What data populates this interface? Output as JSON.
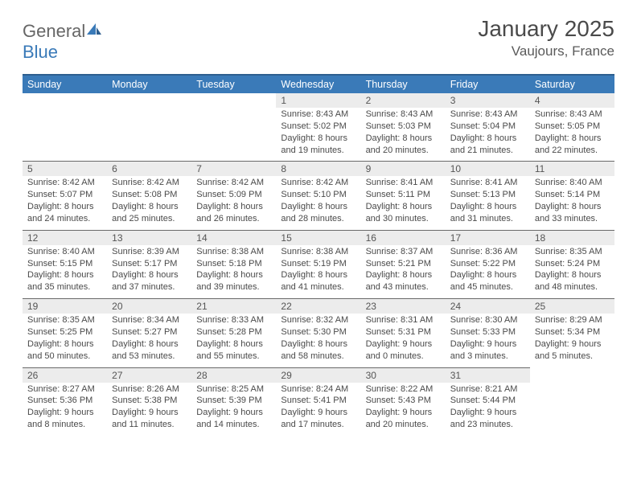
{
  "brand": {
    "part1": "General",
    "part2": "Blue"
  },
  "title": "January 2025",
  "location": "Vaujours, France",
  "colors": {
    "header_bg": "#3a7ab8",
    "header_border_top": "#2e5f8f",
    "daynum_bg": "#ececec",
    "row_divider": "#6a6a6a",
    "page_bg": "#ffffff",
    "text": "#4a4a4a",
    "logo_gray": "#666666",
    "logo_blue": "#3a7ab8"
  },
  "typography": {
    "title_fontsize": 28,
    "location_fontsize": 17,
    "weekday_fontsize": 12.5,
    "daynum_fontsize": 12,
    "cell_fontsize": 11
  },
  "weekdays": [
    "Sunday",
    "Monday",
    "Tuesday",
    "Wednesday",
    "Thursday",
    "Friday",
    "Saturday"
  ],
  "weeks": [
    [
      null,
      null,
      null,
      {
        "n": "1",
        "sr": "8:43 AM",
        "ss": "5:02 PM",
        "dl1": "8 hours",
        "dl2": "19 minutes"
      },
      {
        "n": "2",
        "sr": "8:43 AM",
        "ss": "5:03 PM",
        "dl1": "8 hours",
        "dl2": "20 minutes"
      },
      {
        "n": "3",
        "sr": "8:43 AM",
        "ss": "5:04 PM",
        "dl1": "8 hours",
        "dl2": "21 minutes"
      },
      {
        "n": "4",
        "sr": "8:43 AM",
        "ss": "5:05 PM",
        "dl1": "8 hours",
        "dl2": "22 minutes"
      }
    ],
    [
      {
        "n": "5",
        "sr": "8:42 AM",
        "ss": "5:07 PM",
        "dl1": "8 hours",
        "dl2": "24 minutes"
      },
      {
        "n": "6",
        "sr": "8:42 AM",
        "ss": "5:08 PM",
        "dl1": "8 hours",
        "dl2": "25 minutes"
      },
      {
        "n": "7",
        "sr": "8:42 AM",
        "ss": "5:09 PM",
        "dl1": "8 hours",
        "dl2": "26 minutes"
      },
      {
        "n": "8",
        "sr": "8:42 AM",
        "ss": "5:10 PM",
        "dl1": "8 hours",
        "dl2": "28 minutes"
      },
      {
        "n": "9",
        "sr": "8:41 AM",
        "ss": "5:11 PM",
        "dl1": "8 hours",
        "dl2": "30 minutes"
      },
      {
        "n": "10",
        "sr": "8:41 AM",
        "ss": "5:13 PM",
        "dl1": "8 hours",
        "dl2": "31 minutes"
      },
      {
        "n": "11",
        "sr": "8:40 AM",
        "ss": "5:14 PM",
        "dl1": "8 hours",
        "dl2": "33 minutes"
      }
    ],
    [
      {
        "n": "12",
        "sr": "8:40 AM",
        "ss": "5:15 PM",
        "dl1": "8 hours",
        "dl2": "35 minutes"
      },
      {
        "n": "13",
        "sr": "8:39 AM",
        "ss": "5:17 PM",
        "dl1": "8 hours",
        "dl2": "37 minutes"
      },
      {
        "n": "14",
        "sr": "8:38 AM",
        "ss": "5:18 PM",
        "dl1": "8 hours",
        "dl2": "39 minutes"
      },
      {
        "n": "15",
        "sr": "8:38 AM",
        "ss": "5:19 PM",
        "dl1": "8 hours",
        "dl2": "41 minutes"
      },
      {
        "n": "16",
        "sr": "8:37 AM",
        "ss": "5:21 PM",
        "dl1": "8 hours",
        "dl2": "43 minutes"
      },
      {
        "n": "17",
        "sr": "8:36 AM",
        "ss": "5:22 PM",
        "dl1": "8 hours",
        "dl2": "45 minutes"
      },
      {
        "n": "18",
        "sr": "8:35 AM",
        "ss": "5:24 PM",
        "dl1": "8 hours",
        "dl2": "48 minutes"
      }
    ],
    [
      {
        "n": "19",
        "sr": "8:35 AM",
        "ss": "5:25 PM",
        "dl1": "8 hours",
        "dl2": "50 minutes"
      },
      {
        "n": "20",
        "sr": "8:34 AM",
        "ss": "5:27 PM",
        "dl1": "8 hours",
        "dl2": "53 minutes"
      },
      {
        "n": "21",
        "sr": "8:33 AM",
        "ss": "5:28 PM",
        "dl1": "8 hours",
        "dl2": "55 minutes"
      },
      {
        "n": "22",
        "sr": "8:32 AM",
        "ss": "5:30 PM",
        "dl1": "8 hours",
        "dl2": "58 minutes"
      },
      {
        "n": "23",
        "sr": "8:31 AM",
        "ss": "5:31 PM",
        "dl1": "9 hours",
        "dl2": "0 minutes"
      },
      {
        "n": "24",
        "sr": "8:30 AM",
        "ss": "5:33 PM",
        "dl1": "9 hours",
        "dl2": "3 minutes"
      },
      {
        "n": "25",
        "sr": "8:29 AM",
        "ss": "5:34 PM",
        "dl1": "9 hours",
        "dl2": "5 minutes"
      }
    ],
    [
      {
        "n": "26",
        "sr": "8:27 AM",
        "ss": "5:36 PM",
        "dl1": "9 hours",
        "dl2": "8 minutes"
      },
      {
        "n": "27",
        "sr": "8:26 AM",
        "ss": "5:38 PM",
        "dl1": "9 hours",
        "dl2": "11 minutes"
      },
      {
        "n": "28",
        "sr": "8:25 AM",
        "ss": "5:39 PM",
        "dl1": "9 hours",
        "dl2": "14 minutes"
      },
      {
        "n": "29",
        "sr": "8:24 AM",
        "ss": "5:41 PM",
        "dl1": "9 hours",
        "dl2": "17 minutes"
      },
      {
        "n": "30",
        "sr": "8:22 AM",
        "ss": "5:43 PM",
        "dl1": "9 hours",
        "dl2": "20 minutes"
      },
      {
        "n": "31",
        "sr": "8:21 AM",
        "ss": "5:44 PM",
        "dl1": "9 hours",
        "dl2": "23 minutes"
      },
      null
    ]
  ],
  "labels": {
    "sunrise": "Sunrise:",
    "sunset": "Sunset:",
    "daylight": "Daylight:",
    "and": "and"
  }
}
